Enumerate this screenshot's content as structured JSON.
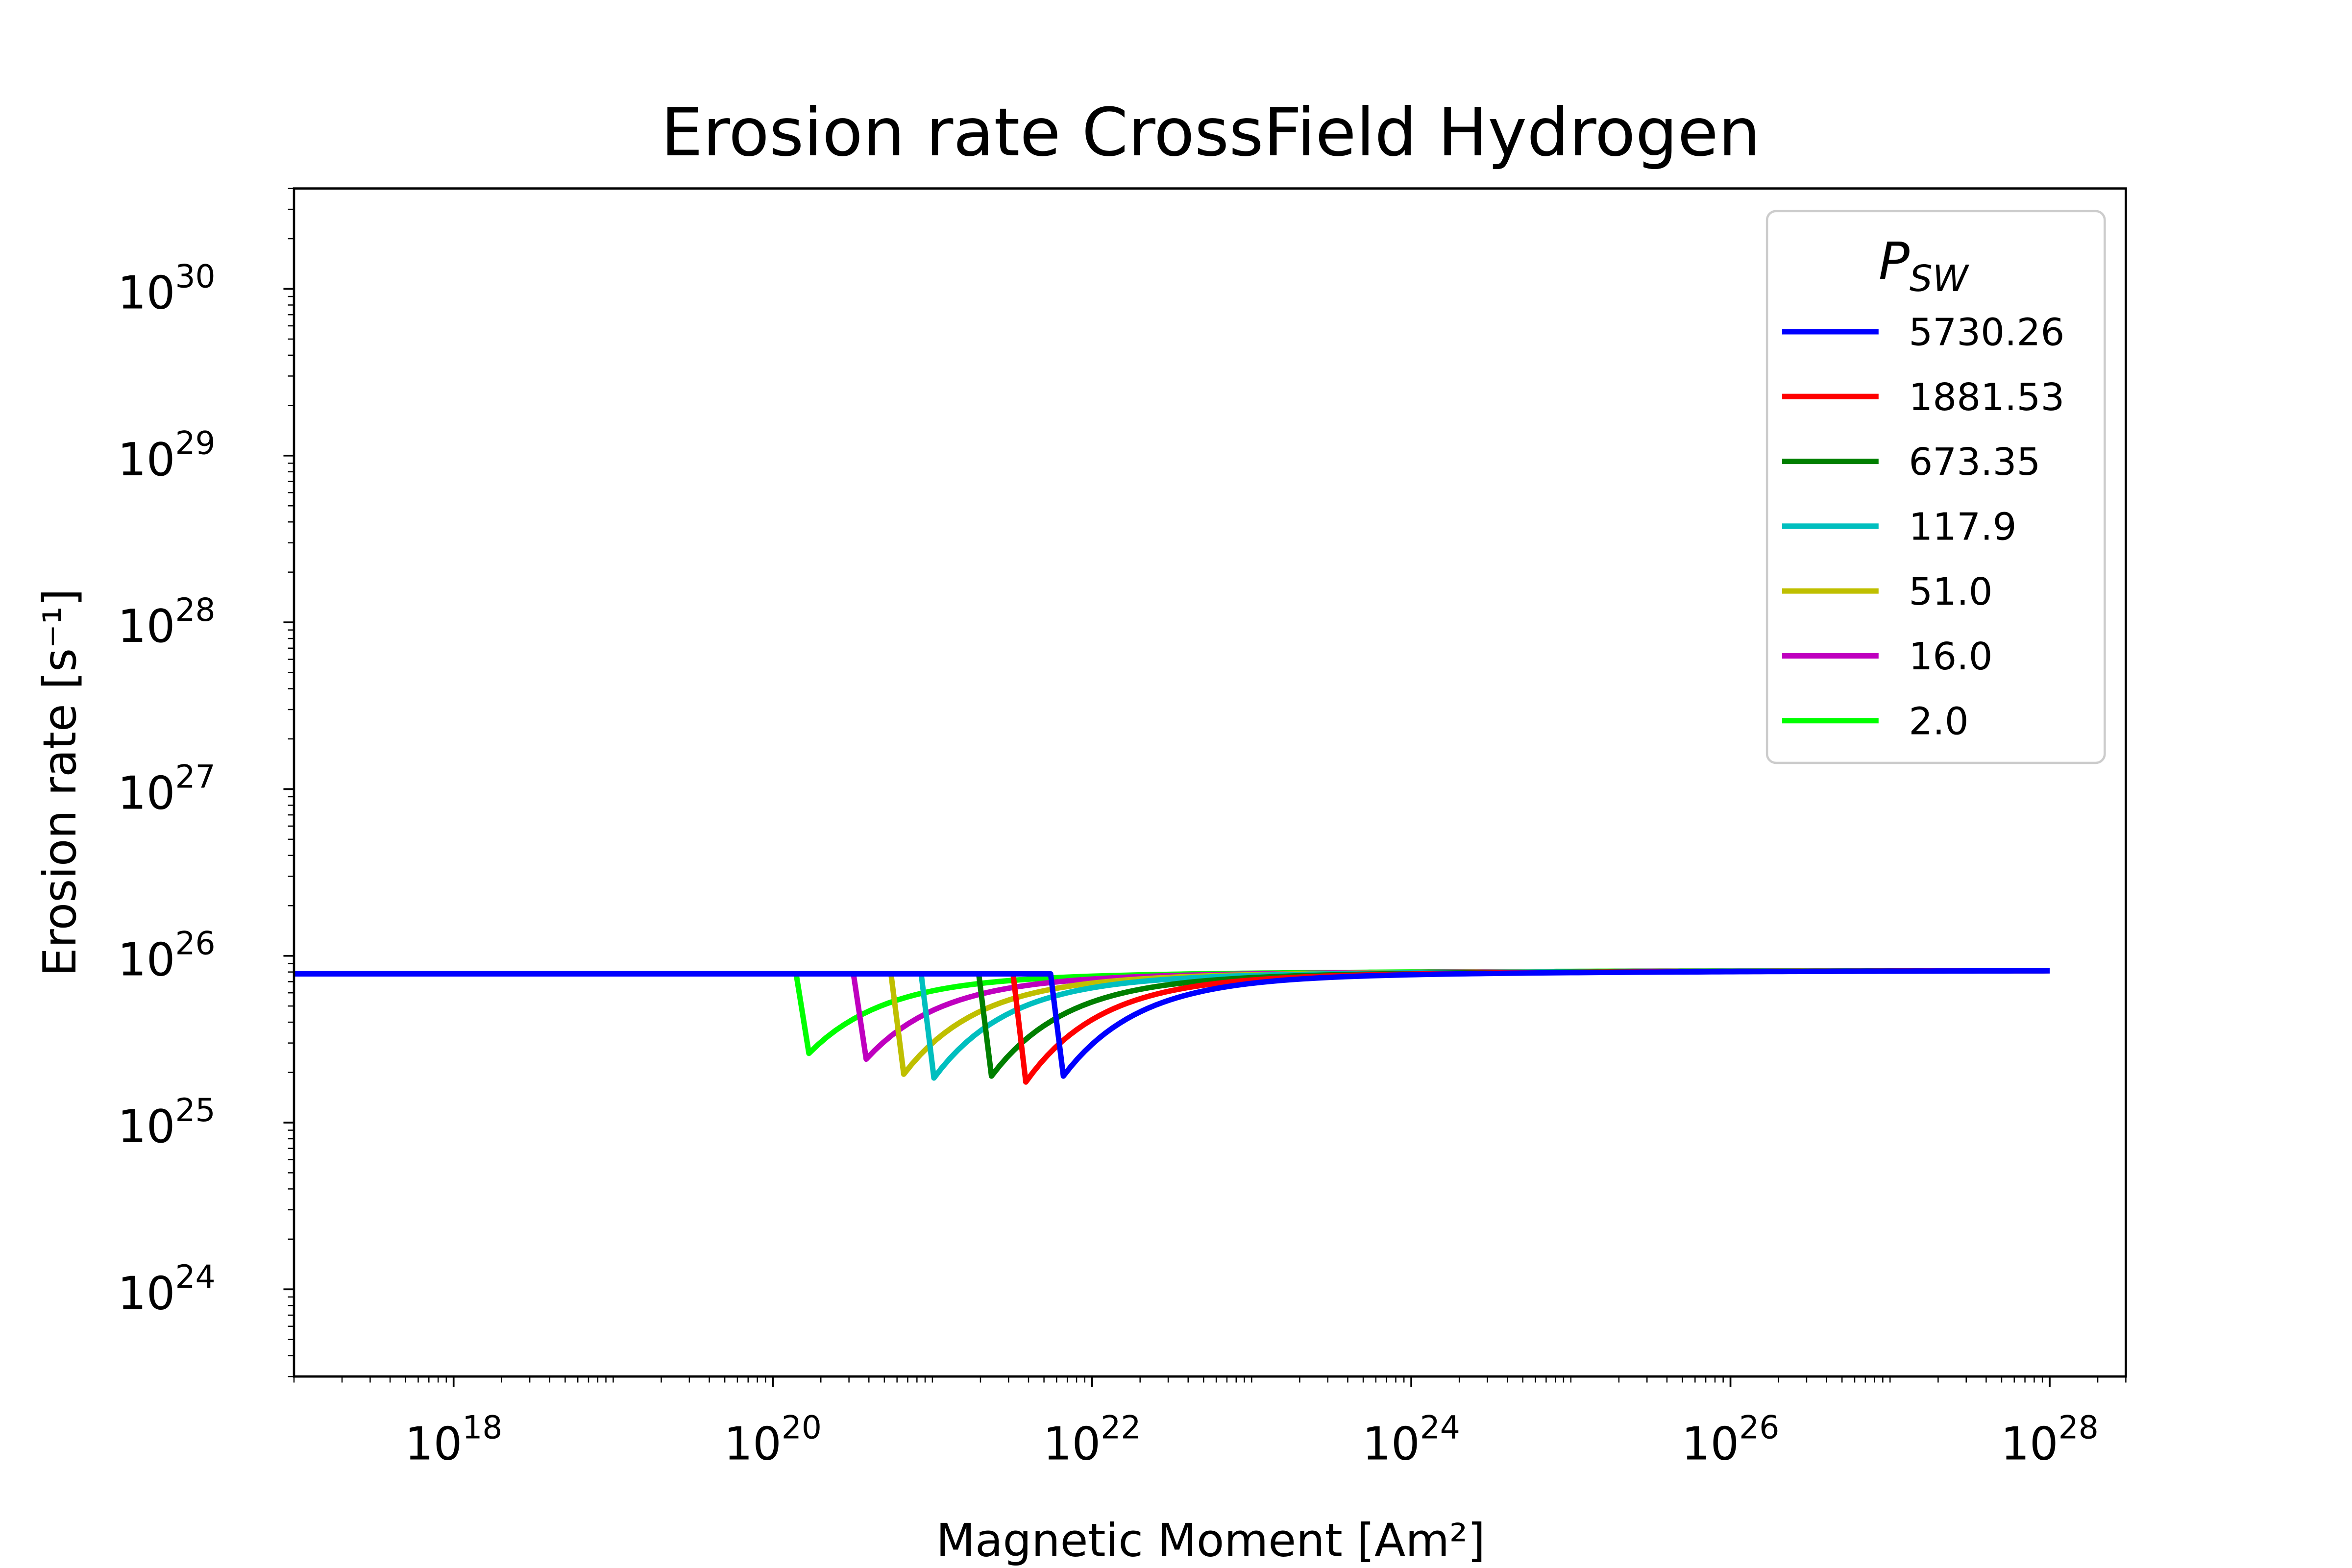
{
  "chart_data": {
    "type": "line",
    "title": "Erosion rate CrossField Hydrogen",
    "xlabel": "Magnetic Moment [Am²]",
    "ylabel": "Erosion rate [s⁻¹]",
    "x_scale": "log",
    "y_scale": "log",
    "xlim": [
      1e+17,
      3e+28
    ],
    "ylim": [
      3e+23,
      4e+30
    ],
    "x_ticks": [
      1e+18,
      1e+20,
      1e+22,
      1e+24,
      1e+26,
      1e+28
    ],
    "x_tick_labels": [
      {
        "base": "10",
        "exp": "18"
      },
      {
        "base": "10",
        "exp": "20"
      },
      {
        "base": "10",
        "exp": "22"
      },
      {
        "base": "10",
        "exp": "24"
      },
      {
        "base": "10",
        "exp": "26"
      },
      {
        "base": "10",
        "exp": "28"
      }
    ],
    "y_ticks": [
      1e+24,
      1e+25,
      1e+26,
      1e+27,
      1e+28,
      1e+29,
      1e+30
    ],
    "y_tick_labels": [
      {
        "base": "10",
        "exp": "24"
      },
      {
        "base": "10",
        "exp": "25"
      },
      {
        "base": "10",
        "exp": "26"
      },
      {
        "base": "10",
        "exp": "27"
      },
      {
        "base": "10",
        "exp": "28"
      },
      {
        "base": "10",
        "exp": "29"
      },
      {
        "base": "10",
        "exp": "30"
      }
    ],
    "grid": false,
    "legend": {
      "title": "P",
      "title_sub": "SW",
      "placement": "top-right"
    },
    "plateau_value": 7.8e+25,
    "end_value": 8.2e+25,
    "x_start": 1e+17,
    "x_end": 1e+28,
    "series": [
      {
        "name": "5730.26",
        "color": "#0000ff",
        "drop_x": 5.5e+21,
        "min_value": 1.9e+25
      },
      {
        "name": "1881.53",
        "color": "#ff0000",
        "drop_x": 3.2e+21,
        "min_value": 1.75e+25
      },
      {
        "name": "673.35",
        "color": "#007f00",
        "drop_x": 1.95e+21,
        "min_value": 1.9e+25
      },
      {
        "name": "117.9",
        "color": "#00bfbf",
        "drop_x": 8.5e+20,
        "min_value": 1.85e+25
      },
      {
        "name": "51.0",
        "color": "#bfbf00",
        "drop_x": 5.5e+20,
        "min_value": 1.95e+25
      },
      {
        "name": "16.0",
        "color": "#bf00bf",
        "drop_x": 3.2e+20,
        "min_value": 2.4e+25
      },
      {
        "name": "2.0",
        "color": "#00ff00",
        "drop_x": 1.4e+20,
        "min_value": 2.6e+25
      }
    ]
  }
}
